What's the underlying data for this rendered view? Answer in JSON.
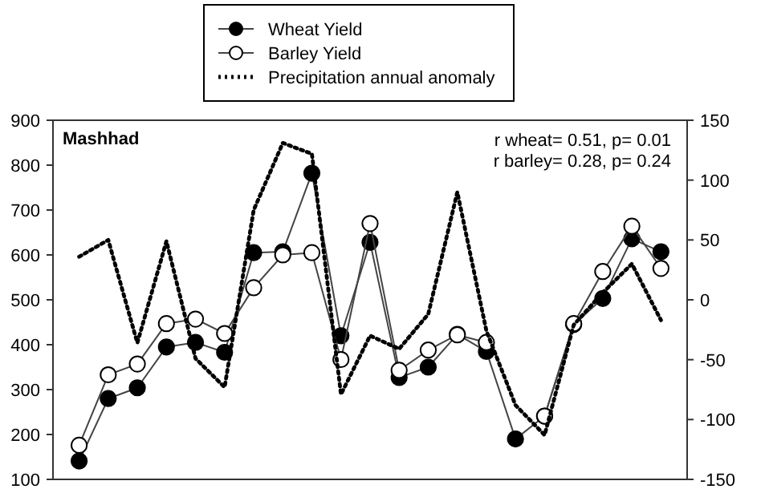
{
  "chart_data": {
    "type": "line",
    "title": "Mashhad",
    "categories": [
      null,
      null,
      null,
      null,
      null,
      null,
      null,
      null,
      null,
      null,
      null,
      null,
      null,
      null,
      null,
      null,
      null,
      null,
      null,
      null,
      null
    ],
    "series": [
      {
        "name": "Wheat Yield",
        "color": "#000000",
        "marker": "circle",
        "values": [
          141,
          280,
          304,
          395,
          405,
          383,
          605,
          607,
          782,
          420,
          628,
          327,
          350,
          423,
          385,
          190,
          241,
          445,
          503,
          636,
          607
        ]
      },
      {
        "name": "Barley Yield",
        "color": "#ffffff",
        "marker": "circle",
        "values": [
          176,
          333,
          357,
          447,
          457,
          425,
          527,
          600,
          605,
          367,
          670,
          343,
          388,
          422,
          405,
          null,
          241,
          447,
          563,
          664,
          570
        ]
      },
      {
        "name": "Precipitation annual anomaly",
        "color": "#000000",
        "marker": "none",
        "line_style": "dotted",
        "axis": "y2",
        "values": [
          36,
          50,
          -36,
          49,
          -49,
          -73,
          75,
          131,
          122,
          -79,
          -30,
          -41,
          -12,
          90,
          -26,
          -88,
          -113,
          -21,
          6,
          30,
          -17
        ]
      }
    ],
    "ylim": [
      100,
      900
    ],
    "yticks": [
      100,
      200,
      300,
      400,
      500,
      600,
      700,
      800,
      900
    ],
    "y2lim": [
      -150,
      150
    ],
    "y2ticks": [
      -150,
      -100,
      -50,
      0,
      50,
      100,
      150
    ],
    "annotations": [
      "r wheat= 0.51, p= 0.01",
      "r barley= 0.28, p= 0.24"
    ],
    "legend": "top",
    "grid": false
  }
}
